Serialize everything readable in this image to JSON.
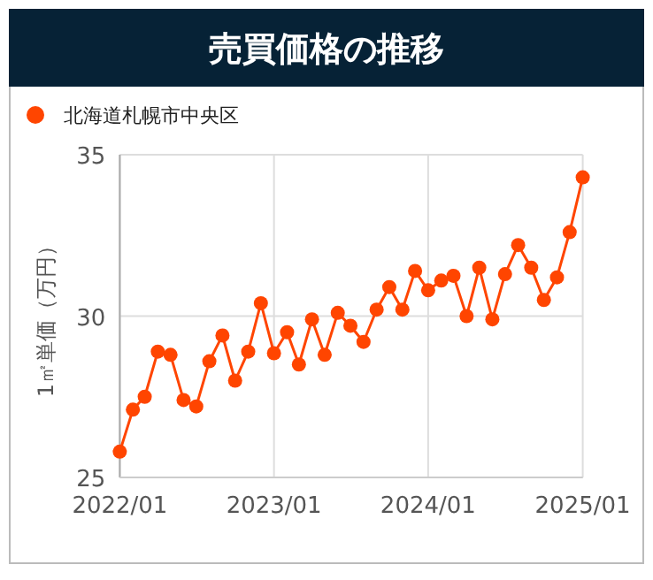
{
  "chart_data": {
    "type": "line",
    "title": "売買価格の推移",
    "ylabel": "1㎡単価（万円）",
    "x": [
      "2022-01",
      "2022-02",
      "2022-03",
      "2022-04",
      "2022-05",
      "2022-06",
      "2022-07",
      "2022-08",
      "2022-09",
      "2022-10",
      "2022-11",
      "2022-12",
      "2023-01",
      "2023-02",
      "2023-03",
      "2023-04",
      "2023-05",
      "2023-06",
      "2023-07",
      "2023-08",
      "2023-09",
      "2023-10",
      "2023-11",
      "2023-12",
      "2024-01",
      "2024-02",
      "2024-03",
      "2024-04",
      "2024-05",
      "2024-06",
      "2024-07",
      "2024-08",
      "2024-09",
      "2024-10",
      "2024-11",
      "2024-12",
      "2025-01"
    ],
    "series": [
      {
        "name": "北海道札幌市中央区",
        "color": "#ff4500",
        "values": [
          25.8,
          27.1,
          27.5,
          28.9,
          28.8,
          27.4,
          27.2,
          28.6,
          29.4,
          28.0,
          28.9,
          30.4,
          28.85,
          29.5,
          28.5,
          29.9,
          28.8,
          30.1,
          29.7,
          29.2,
          30.2,
          30.9,
          30.2,
          31.4,
          30.8,
          31.1,
          31.25,
          30.0,
          31.5,
          29.9,
          31.3,
          32.2,
          31.5,
          30.5,
          31.2,
          32.6,
          34.3
        ]
      }
    ],
    "xlim": [
      "2022-01",
      "2025-01"
    ],
    "xticks": [
      {
        "value": "2022-01",
        "label": "2022/01"
      },
      {
        "value": "2023-01",
        "label": "2023/01"
      },
      {
        "value": "2024-01",
        "label": "2024/01"
      },
      {
        "value": "2025-01",
        "label": "2025/01"
      }
    ],
    "ylim": [
      25,
      35
    ],
    "yticks": [
      25,
      30,
      35
    ],
    "grid": true,
    "legend": "top left",
    "marker": "circle",
    "line_style": "solid"
  }
}
